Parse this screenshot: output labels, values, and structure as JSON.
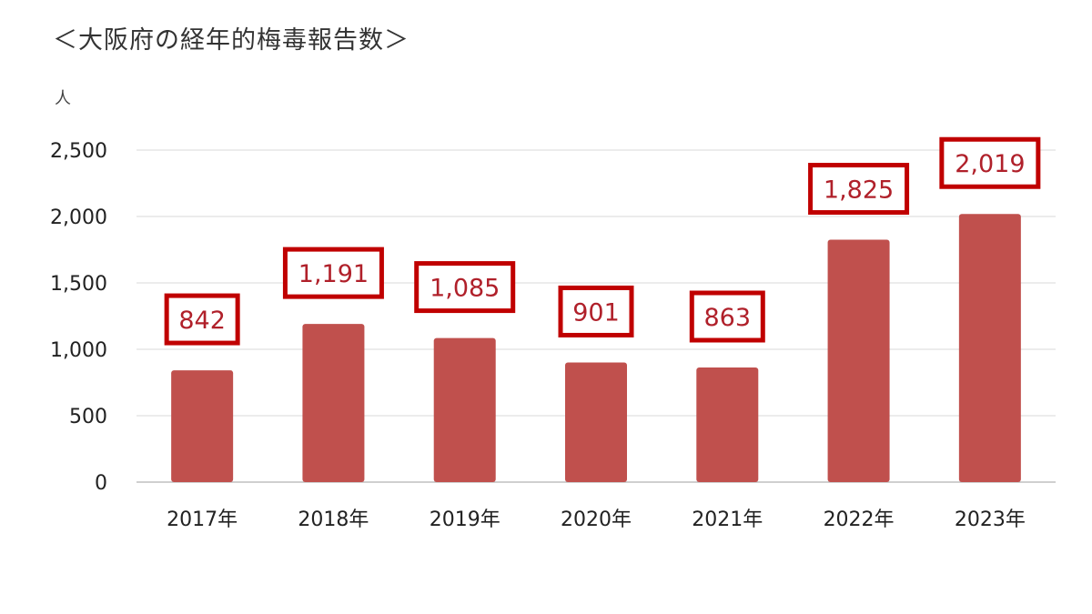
{
  "title": "＜大阪府の経年的梅毒報告数＞",
  "chart_data": {
    "type": "bar",
    "title": "＜大阪府の経年的梅毒報告数＞",
    "unit_label": "人",
    "categories": [
      "2017年",
      "2018年",
      "2019年",
      "2020年",
      "2021年",
      "2022年",
      "2023年"
    ],
    "values": [
      842,
      1191,
      1085,
      901,
      863,
      1825,
      2019
    ],
    "data_labels": [
      "842",
      "1,191",
      "1,085",
      "901",
      "863",
      "1,825",
      "2,019"
    ],
    "ylim": [
      0,
      2500
    ],
    "yticks": [
      0,
      500,
      1000,
      1500,
      2000,
      2500
    ],
    "ytick_labels": [
      "0",
      "500",
      "1,000",
      "1,500",
      "2,000",
      "2,500"
    ],
    "grid": true,
    "legend": "none",
    "bar_color": "#c0504d",
    "label_box_color": "#c00000",
    "label_text_color": "#b0202a"
  }
}
